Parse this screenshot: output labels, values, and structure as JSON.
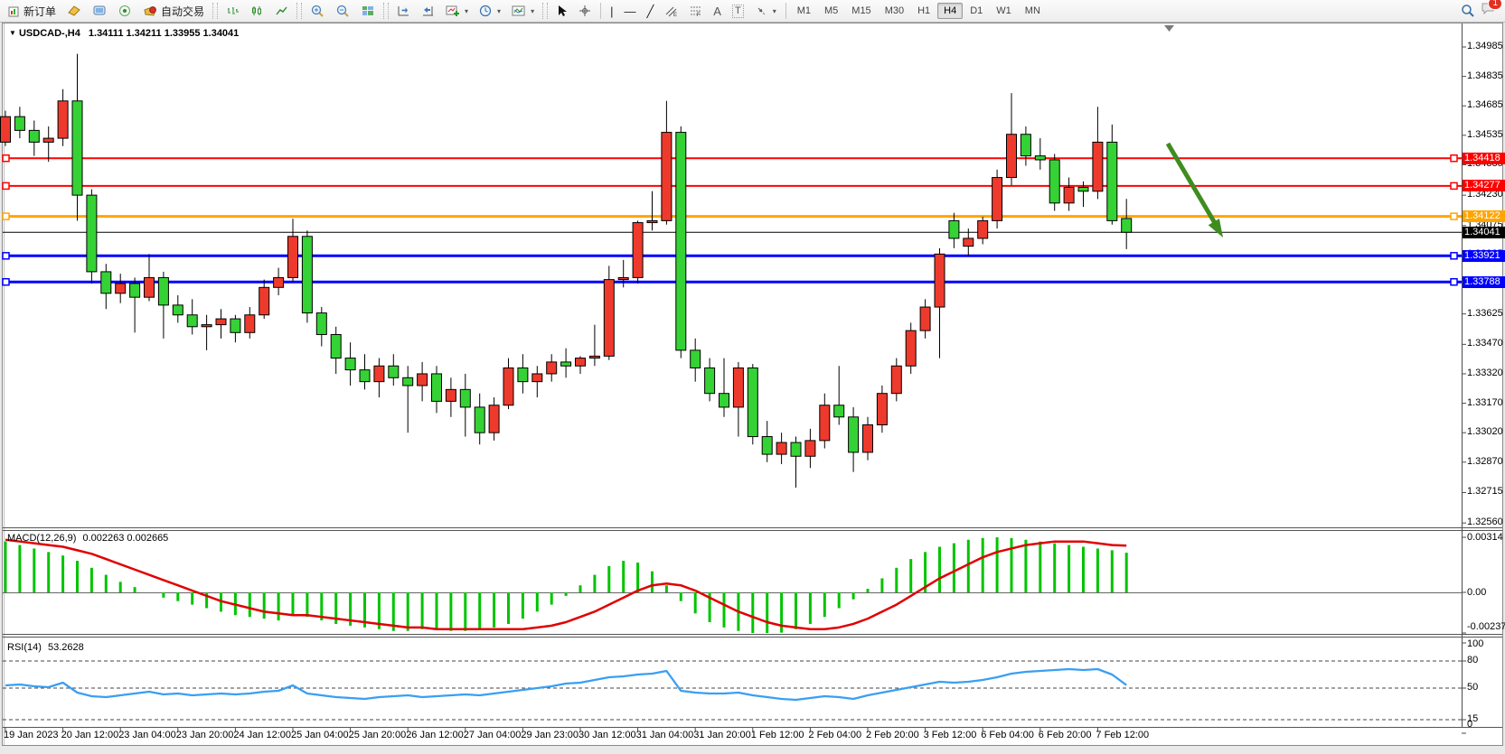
{
  "toolbar": {
    "new_order_label": "新订单",
    "auto_trading_label": "自动交易",
    "text_tool_a": "A",
    "text_tool_t": "T",
    "timeframes": [
      "M1",
      "M5",
      "M15",
      "M30",
      "H1",
      "H4",
      "D1",
      "W1",
      "MN"
    ],
    "active_timeframe": "H4",
    "notification_count": "1"
  },
  "header": {
    "collapse_marker": "▼",
    "symbol": "USDCAD-,H4",
    "ohlc": "1.34111 1.34211 1.33955 1.34041"
  },
  "chart_data": {
    "type": "candlestick",
    "symbol": "USDCAD-,H4",
    "timeframe": "H4",
    "up_color": "#ee3a2d",
    "down_color": "#35d235",
    "candles": [
      [
        1.345,
        1.3466,
        1.3448,
        1.3463
      ],
      [
        1.3463,
        1.3468,
        1.3452,
        1.3456
      ],
      [
        1.3456,
        1.3461,
        1.3443,
        1.345
      ],
      [
        1.345,
        1.3458,
        1.344,
        1.3452
      ],
      [
        1.3452,
        1.3477,
        1.3448,
        1.3471
      ],
      [
        1.3471,
        1.3495,
        1.341,
        1.3423
      ],
      [
        1.3423,
        1.3426,
        1.3378,
        1.3384
      ],
      [
        1.3384,
        1.3388,
        1.3365,
        1.3373
      ],
      [
        1.3373,
        1.3383,
        1.3368,
        1.3378
      ],
      [
        1.3378,
        1.3381,
        1.3353,
        1.3371
      ],
      [
        1.3371,
        1.3393,
        1.3369,
        1.3381
      ],
      [
        1.3381,
        1.3384,
        1.335,
        1.3367
      ],
      [
        1.3367,
        1.3372,
        1.3358,
        1.3362
      ],
      [
        1.3362,
        1.337,
        1.3352,
        1.3356
      ],
      [
        1.3356,
        1.3362,
        1.3344,
        1.3357
      ],
      [
        1.3357,
        1.3365,
        1.335,
        1.336
      ],
      [
        1.336,
        1.3362,
        1.3348,
        1.3353
      ],
      [
        1.3353,
        1.3366,
        1.335,
        1.3362
      ],
      [
        1.3362,
        1.338,
        1.336,
        1.3376
      ],
      [
        1.3376,
        1.3386,
        1.3372,
        1.3381
      ],
      [
        1.3381,
        1.3411,
        1.3379,
        1.3402
      ],
      [
        1.3402,
        1.3405,
        1.3358,
        1.3363
      ],
      [
        1.3363,
        1.3366,
        1.3346,
        1.3352
      ],
      [
        1.3352,
        1.3356,
        1.3332,
        1.334
      ],
      [
        1.334,
        1.3348,
        1.3326,
        1.3334
      ],
      [
        1.3334,
        1.3342,
        1.3324,
        1.3328
      ],
      [
        1.3328,
        1.334,
        1.332,
        1.3336
      ],
      [
        1.3336,
        1.3342,
        1.3326,
        1.333
      ],
      [
        1.333,
        1.3336,
        1.3302,
        1.3326
      ],
      [
        1.3326,
        1.3338,
        1.3318,
        1.3332
      ],
      [
        1.3332,
        1.3336,
        1.3312,
        1.3318
      ],
      [
        1.3318,
        1.333,
        1.331,
        1.3324
      ],
      [
        1.3324,
        1.3332,
        1.33,
        1.3315
      ],
      [
        1.3315,
        1.3322,
        1.3296,
        1.3302
      ],
      [
        1.3302,
        1.332,
        1.3298,
        1.3316
      ],
      [
        1.3316,
        1.334,
        1.3314,
        1.3335
      ],
      [
        1.3335,
        1.3342,
        1.3322,
        1.3328
      ],
      [
        1.3328,
        1.3336,
        1.332,
        1.3332
      ],
      [
        1.3332,
        1.3342,
        1.3328,
        1.3338
      ],
      [
        1.3338,
        1.3345,
        1.333,
        1.3336
      ],
      [
        1.3336,
        1.3341,
        1.3332,
        1.334
      ],
      [
        1.334,
        1.3357,
        1.3336,
        1.3341
      ],
      [
        1.3341,
        1.3387,
        1.3339,
        1.338
      ],
      [
        1.338,
        1.339,
        1.3376,
        1.3381
      ],
      [
        1.3381,
        1.341,
        1.3378,
        1.3409
      ],
      [
        1.3409,
        1.3425,
        1.3405,
        1.341
      ],
      [
        1.341,
        1.3471,
        1.3408,
        1.3455
      ],
      [
        1.3455,
        1.3458,
        1.334,
        1.3344
      ],
      [
        1.3344,
        1.335,
        1.3328,
        1.3335
      ],
      [
        1.3335,
        1.334,
        1.3318,
        1.3322
      ],
      [
        1.3322,
        1.334,
        1.331,
        1.3315
      ],
      [
        1.3315,
        1.3338,
        1.33,
        1.3335
      ],
      [
        1.3335,
        1.3337,
        1.3296,
        1.33
      ],
      [
        1.33,
        1.3308,
        1.3287,
        1.3291
      ],
      [
        1.3291,
        1.3302,
        1.3286,
        1.3297
      ],
      [
        1.3297,
        1.33,
        1.3274,
        1.329
      ],
      [
        1.329,
        1.3304,
        1.3284,
        1.3298
      ],
      [
        1.3298,
        1.3322,
        1.3294,
        1.3316
      ],
      [
        1.3316,
        1.3336,
        1.3306,
        1.331
      ],
      [
        1.331,
        1.3315,
        1.3282,
        1.3292
      ],
      [
        1.3292,
        1.331,
        1.3288,
        1.3306
      ],
      [
        1.3306,
        1.3326,
        1.3302,
        1.3322
      ],
      [
        1.3322,
        1.334,
        1.3318,
        1.3336
      ],
      [
        1.3336,
        1.3358,
        1.3332,
        1.3354
      ],
      [
        1.3354,
        1.337,
        1.335,
        1.3366
      ],
      [
        1.3366,
        1.3396,
        1.334,
        1.3393
      ],
      [
        1.341,
        1.3414,
        1.3396,
        1.3401
      ],
      [
        1.3397,
        1.3406,
        1.3392,
        1.3401
      ],
      [
        1.3401,
        1.3412,
        1.3398,
        1.341
      ],
      [
        1.341,
        1.3436,
        1.3406,
        1.3432
      ],
      [
        1.3432,
        1.3475,
        1.3428,
        1.3454
      ],
      [
        1.3454,
        1.3458,
        1.3438,
        1.3443
      ],
      [
        1.3443,
        1.3452,
        1.3436,
        1.3441
      ],
      [
        1.3441,
        1.3444,
        1.3415,
        1.3419
      ],
      [
        1.3419,
        1.3432,
        1.3415,
        1.3427
      ],
      [
        1.3427,
        1.343,
        1.3417,
        1.3425
      ],
      [
        1.3425,
        1.3468,
        1.3421,
        1.345
      ],
      [
        1.345,
        1.3459,
        1.3408,
        1.341
      ],
      [
        1.34111,
        1.34211,
        1.33955,
        1.34041
      ]
    ],
    "y_ticks": [
      "1.34985",
      "1.34835",
      "1.34685",
      "1.34535",
      "1.34385",
      "1.34230",
      "1.34075",
      "1.33925",
      "1.33775",
      "1.33625",
      "1.33470",
      "1.33320",
      "1.33170",
      "1.33020",
      "1.32870",
      "1.32715",
      "1.32560"
    ],
    "price_lines": [
      {
        "price": 1.34418,
        "label": "1.34418",
        "color": "#ff0000",
        "width": 2
      },
      {
        "price": 1.34277,
        "label": "1.34277",
        "color": "#ff0000",
        "width": 2
      },
      {
        "price": 1.34122,
        "label": "1.34122",
        "color": "#ffa500",
        "width": 3
      },
      {
        "price": 1.33921,
        "label": "1.33921",
        "color": "#0000ff",
        "width": 3
      },
      {
        "price": 1.33788,
        "label": "1.33788",
        "color": "#0000ff",
        "width": 3
      }
    ],
    "bid_line": {
      "price": 1.34041,
      "label": "1.34041",
      "color": "#000000"
    },
    "dates": [
      "19 Jan 2023",
      "20 Jan 12:00",
      "23 Jan 04:00",
      "23 Jan 20:00",
      "24 Jan 12:00",
      "25 Jan 04:00",
      "25 Jan 20:00",
      "26 Jan 12:00",
      "27 Jan 04:00",
      "29 Jan 23:00",
      "30 Jan 12:00",
      "31 Jan 04:00",
      "31 Jan 20:00",
      "1 Feb 12:00",
      "2 Feb 04:00",
      "2 Feb 20:00",
      "3 Feb 12:00",
      "6 Feb 04:00",
      "6 Feb 20:00",
      "7 Feb 12:00"
    ],
    "macd": {
      "name": "MACD(12,26,9)",
      "values_text": "0.002263 0.002665",
      "bar_color": "#00c400",
      "signal_color": "#e10000",
      "axis": [
        {
          "v": 0.00314,
          "label": "0.00314"
        },
        {
          "v": 0,
          "label": "0.00"
        },
        {
          "v": -0.002376,
          "label": "-0.002376"
        }
      ],
      "histogram": [
        0.0029,
        0.0027,
        0.0025,
        0.0023,
        0.0021,
        0.0018,
        0.0014,
        0.001,
        0.0006,
        0.0003,
        0.0,
        -0.0003,
        -0.0005,
        -0.0007,
        -0.0009,
        -0.0011,
        -0.0013,
        -0.0014,
        -0.0015,
        -0.0016,
        -0.0013,
        -0.0014,
        -0.0016,
        -0.0018,
        -0.0019,
        -0.002,
        -0.0021,
        -0.0022,
        -0.0022,
        -0.0021,
        -0.0021,
        -0.0022,
        -0.0022,
        -0.0021,
        -0.002,
        -0.0018,
        -0.0015,
        -0.0011,
        -0.0007,
        -0.0002,
        0.0004,
        0.001,
        0.0015,
        0.0018,
        0.0017,
        0.0012,
        0.0004,
        -0.0005,
        -0.0012,
        -0.0017,
        -0.002,
        -0.0022,
        -0.0024,
        -0.0024,
        -0.0023,
        -0.0021,
        -0.0018,
        -0.0014,
        -0.0009,
        -0.0004,
        0.0002,
        0.0008,
        0.0014,
        0.0019,
        0.0023,
        0.0026,
        0.0028,
        0.003,
        0.0031,
        0.00314,
        0.0031,
        0.003,
        0.0029,
        0.0028,
        0.0027,
        0.0026,
        0.0025,
        0.0024,
        0.002263
      ],
      "signal": [
        0.003,
        0.0029,
        0.0028,
        0.0027,
        0.0026,
        0.0024,
        0.0022,
        0.0019,
        0.0016,
        0.0013,
        0.001,
        0.0007,
        0.0004,
        0.0001,
        -0.0002,
        -0.0005,
        -0.0007,
        -0.0009,
        -0.0011,
        -0.0012,
        -0.0013,
        -0.0013,
        -0.0014,
        -0.0015,
        -0.0016,
        -0.0017,
        -0.0018,
        -0.0019,
        -0.002,
        -0.002,
        -0.0021,
        -0.0021,
        -0.0021,
        -0.0021,
        -0.0021,
        -0.0021,
        -0.0021,
        -0.002,
        -0.0019,
        -0.0017,
        -0.0014,
        -0.0011,
        -0.0007,
        -0.0003,
        0.0001,
        0.0004,
        0.0005,
        0.0004,
        0.0001,
        -0.0003,
        -0.0007,
        -0.0011,
        -0.0014,
        -0.0017,
        -0.0019,
        -0.002,
        -0.0021,
        -0.0021,
        -0.002,
        -0.0018,
        -0.0015,
        -0.0011,
        -0.0007,
        -0.0002,
        0.0003,
        0.0008,
        0.0012,
        0.0016,
        0.002,
        0.0023,
        0.0025,
        0.0027,
        0.0028,
        0.0029,
        0.0029,
        0.0029,
        0.0028,
        0.0027,
        0.002665
      ]
    },
    "rsi": {
      "name": "RSI(14)",
      "value_text": "53.2628",
      "line_color": "#3a9ff2",
      "levels": [
        80,
        50,
        15
      ],
      "axis_labels": [
        {
          "v": 100,
          "label": "100"
        },
        {
          "v": 80,
          "label": "80"
        },
        {
          "v": 50,
          "label": "50"
        },
        {
          "v": 15,
          "label": "15"
        },
        {
          "v": 0,
          "label": "0"
        }
      ],
      "values": [
        53,
        54,
        52,
        51,
        56,
        45,
        41,
        40,
        42,
        44,
        46,
        43,
        44,
        42,
        43,
        44,
        43,
        44,
        46,
        47,
        53,
        44,
        42,
        40,
        39,
        38,
        40,
        41,
        42,
        40,
        41,
        42,
        43,
        42,
        44,
        46,
        48,
        50,
        52,
        55,
        56,
        59,
        62,
        63,
        65,
        66,
        69,
        47,
        45,
        44,
        44,
        45,
        42,
        40,
        38,
        37,
        39,
        41,
        40,
        38,
        42,
        45,
        48,
        51,
        54,
        57,
        56,
        57,
        59,
        62,
        66,
        68,
        69,
        70,
        71,
        70,
        71,
        65,
        53.2628
      ]
    },
    "annotation_arrow": {
      "color": "#3f8c1f"
    }
  }
}
